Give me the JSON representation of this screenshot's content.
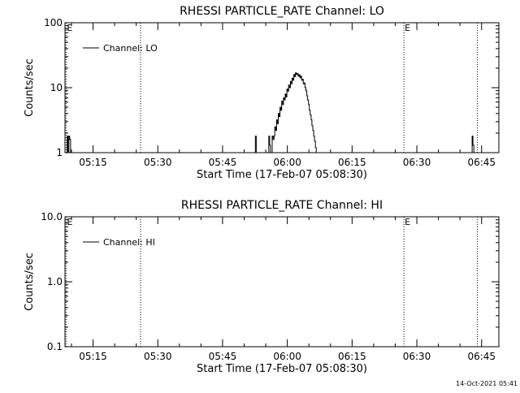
{
  "chart_data": [
    {
      "type": "line",
      "title": "RHESSI PARTICLE_RATE Channel: LO",
      "xlabel": "Start Time (17-Feb-07 05:08:30)",
      "ylabel": "Counts/sec",
      "y_scale": "log",
      "xlim": [
        "05:08:30",
        "06:49:00"
      ],
      "ylim": [
        1,
        100
      ],
      "x_ticks": [
        "05:15",
        "05:30",
        "05:45",
        "06:00",
        "06:15",
        "06:30",
        "06:45"
      ],
      "y_ticks": [
        "1",
        "10",
        "100"
      ],
      "grid": false,
      "legend": {
        "position": "top-left",
        "entries": [
          "Channel: LO"
        ]
      },
      "markers": [
        {
          "time": "05:08:45",
          "label": "E"
        },
        {
          "time": "05:26:00",
          "label": ""
        },
        {
          "time": "06:27:00",
          "label": "E"
        },
        {
          "time": "06:44:00",
          "label": ""
        }
      ],
      "series": [
        {
          "name": "Channel: LO",
          "segments": [
            {
              "x": [
                "05:08:48",
                "05:09:00",
                "05:09:12",
                "05:09:24",
                "05:09:36",
                "05:09:48",
                "05:10:00"
              ],
              "y": [
                1.0,
                1.8,
                1.0,
                1.8,
                1.6,
                1.0,
                1.0
              ]
            },
            {
              "x": [
                "05:52:24",
                "05:52:36",
                "05:52:48"
              ],
              "y": [
                1.0,
                1.8,
                1.0
              ]
            },
            {
              "x": [
                "05:55:30",
                "05:55:42",
                "05:55:54",
                "05:56:06",
                "05:56:18",
                "05:56:30",
                "05:56:42",
                "05:56:54",
                "05:57:06",
                "05:57:18",
                "05:57:30",
                "05:57:42",
                "05:57:54",
                "05:58:06",
                "05:58:18",
                "05:58:30",
                "05:58:42",
                "05:58:54",
                "05:59:06",
                "05:59:18",
                "05:59:30",
                "05:59:42",
                "05:59:54",
                "06:00:06",
                "06:00:18",
                "06:00:30",
                "06:00:42",
                "06:00:54",
                "06:01:06",
                "06:01:18",
                "06:01:30",
                "06:01:42",
                "06:01:54",
                "06:02:06",
                "06:02:18",
                "06:02:30",
                "06:02:42",
                "06:02:54",
                "06:03:06",
                "06:03:18",
                "06:03:30",
                "06:03:42",
                "06:03:54",
                "06:04:06",
                "06:04:18",
                "06:04:30",
                "06:04:42",
                "06:04:54",
                "06:05:06",
                "06:05:18",
                "06:05:30",
                "06:05:42",
                "06:05:54",
                "06:06:06",
                "06:06:18",
                "06:06:30",
                "06:06:42"
              ],
              "y": [
                1.0,
                1.8,
                1.3,
                1.0,
                1.0,
                1.8,
                1.6,
                1.8,
                2.5,
                2.2,
                3.2,
                2.8,
                4.0,
                3.6,
                5.0,
                4.5,
                6.2,
                5.5,
                7.0,
                6.5,
                8.0,
                7.2,
                9.5,
                8.8,
                11.0,
                10.0,
                12.5,
                11.5,
                14.0,
                13.0,
                16.0,
                14.8,
                17.0,
                16.0,
                16.5,
                15.0,
                15.8,
                14.2,
                15.0,
                13.0,
                13.5,
                11.5,
                11.8,
                10.0,
                9.0,
                7.5,
                6.5,
                5.5,
                4.5,
                3.8,
                3.2,
                2.6,
                2.2,
                1.8,
                1.5,
                1.2,
                1.0
              ]
            },
            {
              "x": [
                "06:42:36",
                "06:42:48",
                "06:43:00",
                "06:43:12"
              ],
              "y": [
                1.0,
                1.8,
                1.3,
                1.0
              ]
            }
          ]
        }
      ]
    },
    {
      "type": "line",
      "title": "RHESSI PARTICLE_RATE Channel: HI",
      "xlabel": "Start Time (17-Feb-07 05:08:30)",
      "ylabel": "Counts/sec",
      "y_scale": "log",
      "xlim": [
        "05:08:30",
        "06:49:00"
      ],
      "ylim": [
        0.1,
        10.0
      ],
      "x_ticks": [
        "05:15",
        "05:30",
        "05:45",
        "06:00",
        "06:15",
        "06:30",
        "06:45"
      ],
      "y_ticks": [
        "0.1",
        "1.0",
        "10.0"
      ],
      "grid": false,
      "legend": {
        "position": "top-left",
        "entries": [
          "Channel: HI"
        ]
      },
      "markers": [
        {
          "time": "05:08:45",
          "label": "E"
        },
        {
          "time": "05:26:00",
          "label": ""
        },
        {
          "time": "06:27:00",
          "label": "E"
        },
        {
          "time": "06:44:00",
          "label": ""
        }
      ],
      "series": [
        {
          "name": "Channel: HI",
          "segments": []
        }
      ]
    }
  ],
  "footer": {
    "timestamp": "14-Oct-2021 05:41"
  }
}
